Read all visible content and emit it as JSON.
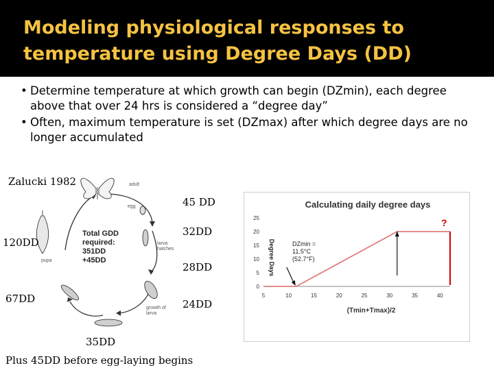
{
  "slide": {
    "title_line1": "Modeling physiological responses to",
    "title_line2": "temperature using Degree Days (DD)",
    "bullets": [
      "Determine temperature at which growth can begin (DZmin), each degree above that over 24 hrs is considered a “degree day”",
      "Often, maximum temperature is set (DZmax) after which degree days are no longer accumulated"
    ],
    "citation": "Zalucki 1982",
    "stage_labels": {
      "egg_dd": "45 DD",
      "larva_hatch_dd": "32DD",
      "mid_larva_dd": "28DD",
      "growth_dd": "24DD",
      "pupa_dd": "120DD",
      "left_low_dd": "67DD",
      "bottom_dd": "35DD"
    },
    "footer_note": "Plus 45DD before egg-laying begins"
  },
  "lifecycle": {
    "center_line1": "Total GDD",
    "center_line2": "required:",
    "center_line3": "351DD",
    "center_line4": "+45DD",
    "labels": {
      "adult": "adult",
      "egg": "egg",
      "larva_hatches1": "larva",
      "larva_hatches2": "hatches",
      "pupa": "pupa",
      "growth1": "growth of",
      "growth2": "larva"
    }
  },
  "chart_data": {
    "type": "line",
    "title": "Calculating daily degree days",
    "xlabel": "(Tmin+Tmax)/2",
    "ylabel": "Degree Days",
    "xlim": [
      5,
      42
    ],
    "ylim": [
      0,
      25
    ],
    "xticks": [
      5,
      10,
      15,
      20,
      25,
      30,
      35,
      40
    ],
    "yticks": [
      0,
      5,
      10,
      15,
      20,
      25
    ],
    "series": [
      {
        "x": [
          5,
          11.5,
          31.5,
          42
        ],
        "y": [
          0,
          0,
          20,
          20
        ]
      }
    ],
    "annotation": {
      "line1": "DZmin =",
      "line2": "11.5°C",
      "line3": "(52.7°F)"
    },
    "question_mark": "?",
    "colors": {
      "line": "#e07b7b",
      "border": "#cc0000",
      "text": "#222222"
    }
  }
}
